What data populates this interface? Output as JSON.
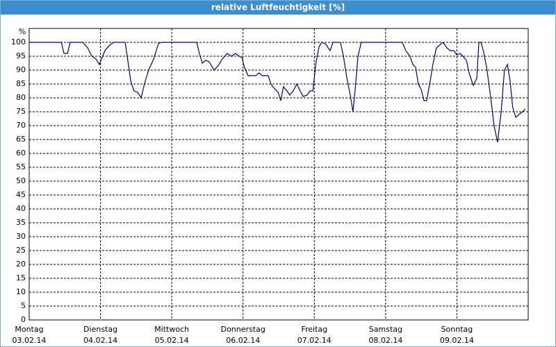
{
  "chart_data": {
    "type": "line",
    "title": "relative Luftfeuchtigkeit [%]",
    "y_label": "%",
    "x": [
      0,
      10.8,
      11.7,
      12.9,
      13.8,
      18.0,
      19.7,
      21.1,
      22.5,
      23.6,
      24.3,
      25.5,
      27.1,
      28.5,
      32.3,
      33.0,
      34.2,
      35.3,
      36.5,
      37.7,
      38.8,
      40.2,
      41.9,
      43.5,
      44.5,
      56.4,
      57.3,
      58.3,
      59.4,
      60.6,
      62.2,
      63.6,
      65.0,
      66.7,
      68.1,
      69.5,
      70.7,
      71.6,
      72.5,
      73.7,
      75.1,
      76.3,
      77.4,
      78.4,
      79.3,
      80.5,
      81.4,
      82.4,
      83.8,
      84.7,
      85.6,
      86.8,
      87.7,
      88.9,
      90.1,
      91.2,
      92.2,
      93.6,
      94.5,
      95.5,
      96.6,
      97.6,
      98.5,
      99.7,
      101.3,
      102.3,
      104.8,
      105.8,
      106.9,
      108.1,
      109.0,
      109.7,
      110.7,
      111.8,
      113.0,
      125.6,
      126.8,
      128.2,
      129.2,
      130.1,
      131.0,
      132.0,
      132.9,
      133.8,
      135.0,
      135.9,
      137.1,
      138.7,
      139.4,
      140.6,
      141.8,
      143.0,
      143.9,
      145.1,
      146.0,
      147.2,
      148.1,
      149.5,
      150.7,
      151.4,
      152.1,
      153.0,
      154.0,
      155.4,
      156.5,
      157.7,
      158.9,
      160.0,
      161.0,
      161.9,
      162.8,
      163.8,
      164.9,
      166.1,
      167.0
    ],
    "series": [
      {
        "name": "relative Luftfeuchtigkeit",
        "color": "#000080",
        "values": [
          100,
          100,
          96,
          96,
          100,
          100,
          98,
          95,
          94,
          92,
          94,
          97,
          99,
          100,
          100,
          95,
          86,
          82.5,
          82,
          80,
          85,
          90,
          94,
          99.5,
          100,
          100,
          96,
          92.5,
          93.5,
          93,
          90,
          91.5,
          94,
          96,
          95,
          96,
          95,
          94.5,
          91,
          88,
          88,
          88,
          89,
          88,
          88,
          88,
          85,
          83.5,
          82,
          79,
          84,
          82.5,
          81,
          82.5,
          85,
          82.5,
          80.5,
          81,
          82.5,
          82.5,
          93,
          98.5,
          100,
          99.5,
          97,
          100,
          100,
          95,
          87.5,
          81,
          75,
          82.5,
          95,
          100,
          100,
          100,
          97,
          95,
          92,
          91,
          85,
          83,
          79,
          79,
          86,
          92,
          98,
          99.5,
          100,
          98,
          97,
          97,
          95.5,
          96,
          95,
          93.5,
          89,
          84.5,
          87,
          100,
          100,
          96.5,
          91,
          80,
          70,
          64,
          75,
          90,
          92,
          86,
          76.5,
          73,
          74,
          75,
          76
        ]
      }
    ],
    "xlim": [
      0,
      168
    ],
    "xticks": [
      {
        "value": 0,
        "label": "Montag"
      },
      {
        "value": 24,
        "label": "Dienstag"
      },
      {
        "value": 48,
        "label": "Mittwoch"
      },
      {
        "value": 72,
        "label": "Donnerstag"
      },
      {
        "value": 96,
        "label": "Freitag"
      },
      {
        "value": 120,
        "label": "Samstag"
      },
      {
        "value": 144,
        "label": "Sonntag"
      }
    ],
    "xtick_dates": [
      "03.02.14",
      "04.02.14",
      "05.02.14",
      "06.02.14",
      "07.02.14",
      "08.02.14",
      "09.02.14"
    ],
    "ylim": [
      0,
      105
    ],
    "yticks": [
      0,
      5,
      10,
      15,
      20,
      25,
      30,
      35,
      40,
      45,
      50,
      55,
      60,
      65,
      70,
      75,
      80,
      85,
      90,
      95,
      100
    ],
    "grid": true
  }
}
